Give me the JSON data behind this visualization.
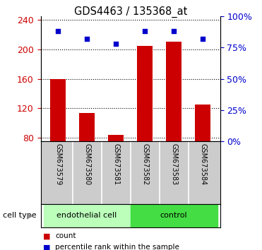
{
  "title": "GDS4463 / 135368_at",
  "samples": [
    "GSM673579",
    "GSM673580",
    "GSM673581",
    "GSM673582",
    "GSM673583",
    "GSM673584"
  ],
  "counts": [
    160,
    113,
    84,
    205,
    210,
    125
  ],
  "percentile_ranks": [
    88,
    82,
    78,
    88,
    88,
    82
  ],
  "ylim_left": [
    75,
    245
  ],
  "ylim_right": [
    0,
    100
  ],
  "yticks_left": [
    80,
    120,
    160,
    200,
    240
  ],
  "yticks_right": [
    0,
    25,
    50,
    75,
    100
  ],
  "bar_color": "#cc0000",
  "marker_color": "#0000cc",
  "cell_types": [
    {
      "label": "endothelial cell",
      "n": 3,
      "color": "#bbffbb"
    },
    {
      "label": "control",
      "n": 3,
      "color": "#44dd44"
    }
  ],
  "cell_type_label": "cell type",
  "legend_count_label": "count",
  "legend_percentile_label": "percentile rank within the sample",
  "tick_label_color_left": "#cc0000",
  "tick_label_color_right": "#0000cc"
}
